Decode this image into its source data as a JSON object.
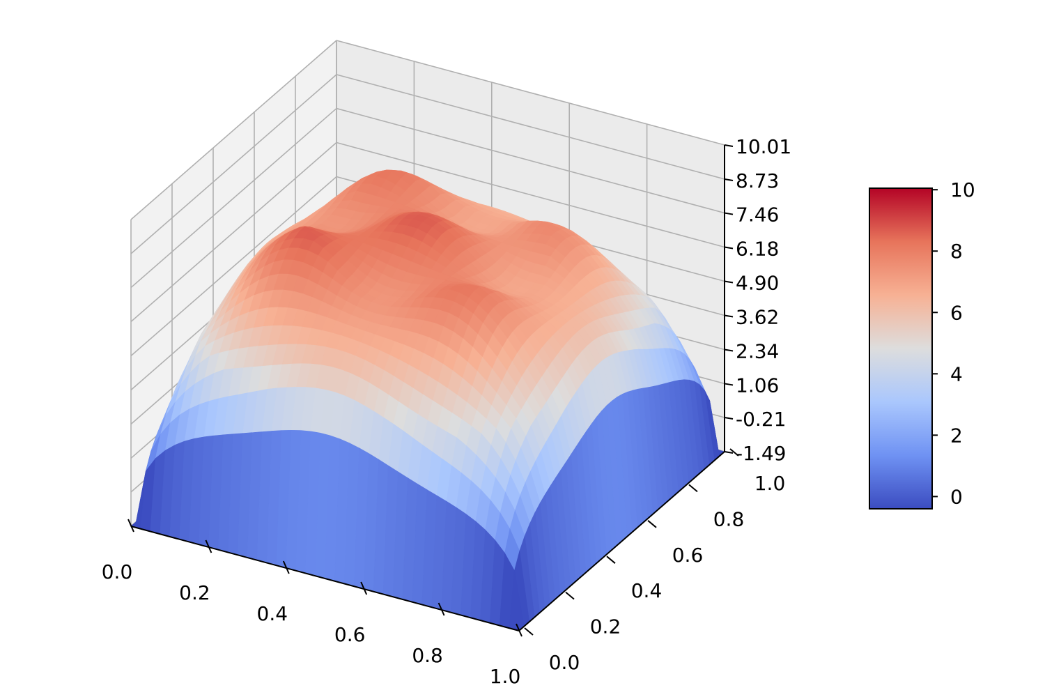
{
  "chart_data": {
    "type": "surface",
    "colormap": "coolwarm",
    "x_ticks": [
      "0.0",
      "0.2",
      "0.4",
      "0.6",
      "0.8",
      "1.0"
    ],
    "y_ticks": [
      "0.0",
      "0.2",
      "0.4",
      "0.6",
      "0.8",
      "1.0"
    ],
    "z_ticks": [
      "-1.49",
      "-0.21",
      "1.06",
      "2.34",
      "3.62",
      "4.90",
      "6.18",
      "7.46",
      "8.73",
      "10.01"
    ],
    "xlim": [
      0,
      1
    ],
    "ylim": [
      0,
      1
    ],
    "zlim": [
      -1.49,
      10.01
    ],
    "grid": true,
    "surface": {
      "x_range": [
        0,
        1
      ],
      "y_range": [
        0,
        1
      ],
      "z_min": -1.49,
      "z_max": 10.01,
      "description_points": [
        {
          "x": 0,
          "y": 0,
          "z": -1.49
        },
        {
          "x": 1,
          "y": 0,
          "z": -1.49
        },
        {
          "x": 0,
          "y": 1,
          "z": -1.49
        },
        {
          "x": 1,
          "y": 1,
          "z": -1.49
        },
        {
          "x": 0.5,
          "y": 0.5,
          "z": 7.3
        },
        {
          "x": 0.5,
          "y": 0,
          "z": 3.5
        },
        {
          "x": 0.2,
          "y": 0.5,
          "z": 9.3
        }
      ]
    },
    "colorbar": {
      "ticks": [
        "0",
        "2",
        "4",
        "6",
        "8",
        "10"
      ],
      "tick_values": [
        0,
        2,
        4,
        6,
        8,
        10
      ],
      "range": [
        -0.4,
        10.05
      ],
      "colors": [
        "#3b4cc0",
        "#6f92f3",
        "#aac7fd",
        "#dddddd",
        "#f7b194",
        "#e7745b",
        "#b40426"
      ]
    }
  }
}
